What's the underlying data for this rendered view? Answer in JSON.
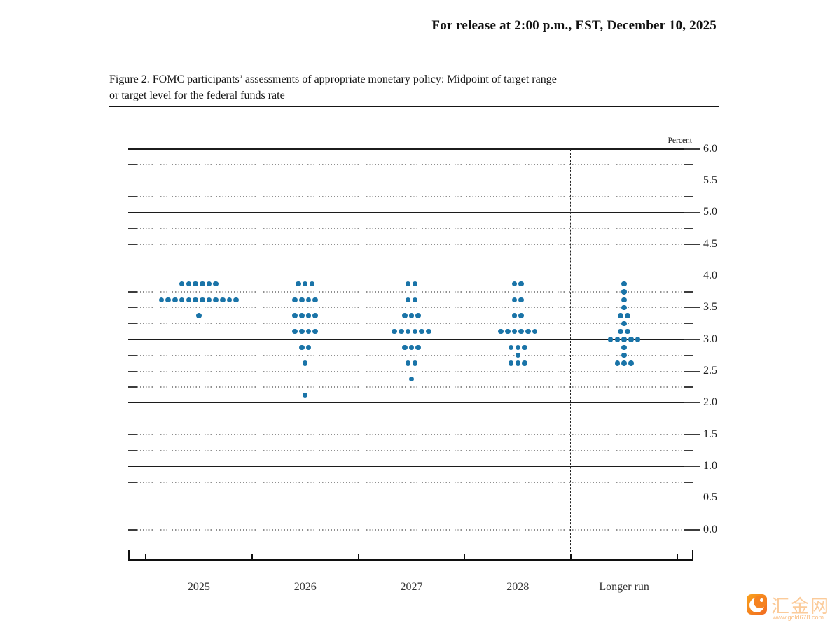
{
  "header": {
    "release_line": "For release at 2:00 p.m., EST, December 10, 2025"
  },
  "figure": {
    "title_line1": "Figure 2. FOMC participants’ assessments of appropriate monetary policy: Midpoint of target range",
    "title_line2": "or target level for the federal funds rate"
  },
  "chart_data": {
    "type": "scatter",
    "title": "Figure 2. FOMC participants’ assessments of appropriate monetary policy: Midpoint of target range or target level for the federal funds rate",
    "xlabel": "",
    "ylabel": "Percent",
    "ylim": [
      0.0,
      6.0
    ],
    "y_major_tick_step": 0.5,
    "y_minor_grid_step": 0.25,
    "grid": "dotted minor, solid at whole percents",
    "legend_position": "none",
    "y_tick_labels": [
      "6.0",
      "5.5",
      "5.0",
      "4.5",
      "4.0",
      "3.5",
      "3.0",
      "2.5",
      "2.0",
      "1.5",
      "1.0",
      "0.5",
      "0.0"
    ],
    "dot_color": "#1a74a8",
    "columns": [
      {
        "label": "2025",
        "dots": [
          {
            "rate": 3.875,
            "count": 6
          },
          {
            "rate": 3.625,
            "count": 12
          },
          {
            "rate": 3.375,
            "count": 1
          }
        ]
      },
      {
        "label": "2026",
        "dots": [
          {
            "rate": 3.875,
            "count": 3
          },
          {
            "rate": 3.625,
            "count": 4
          },
          {
            "rate": 3.375,
            "count": 4
          },
          {
            "rate": 3.125,
            "count": 4
          },
          {
            "rate": 2.875,
            "count": 2
          },
          {
            "rate": 2.625,
            "count": 1
          },
          {
            "rate": 2.125,
            "count": 1
          }
        ]
      },
      {
        "label": "2027",
        "dots": [
          {
            "rate": 3.875,
            "count": 2
          },
          {
            "rate": 3.625,
            "count": 2
          },
          {
            "rate": 3.375,
            "count": 3
          },
          {
            "rate": 3.125,
            "count": 6
          },
          {
            "rate": 2.875,
            "count": 3
          },
          {
            "rate": 2.625,
            "count": 2
          },
          {
            "rate": 2.375,
            "count": 1
          }
        ]
      },
      {
        "label": "2028",
        "dots": [
          {
            "rate": 3.875,
            "count": 2
          },
          {
            "rate": 3.625,
            "count": 2
          },
          {
            "rate": 3.375,
            "count": 2
          },
          {
            "rate": 3.125,
            "count": 6
          },
          {
            "rate": 2.875,
            "count": 3
          },
          {
            "rate": 2.75,
            "count": 1
          },
          {
            "rate": 2.625,
            "count": 3
          }
        ]
      },
      {
        "label": "Longer run",
        "dots": [
          {
            "rate": 3.875,
            "count": 1
          },
          {
            "rate": 3.75,
            "count": 1
          },
          {
            "rate": 3.625,
            "count": 1
          },
          {
            "rate": 3.5,
            "count": 1
          },
          {
            "rate": 3.375,
            "count": 2
          },
          {
            "rate": 3.25,
            "count": 1
          },
          {
            "rate": 3.125,
            "count": 2
          },
          {
            "rate": 3.0,
            "count": 5
          },
          {
            "rate": 2.875,
            "count": 1
          },
          {
            "rate": 2.75,
            "count": 1
          },
          {
            "rate": 2.625,
            "count": 3
          }
        ]
      }
    ]
  },
  "watermark": {
    "site_name": "汇金网",
    "site_url": "www.gold678.com",
    "brand_color": "#f68b1f"
  }
}
